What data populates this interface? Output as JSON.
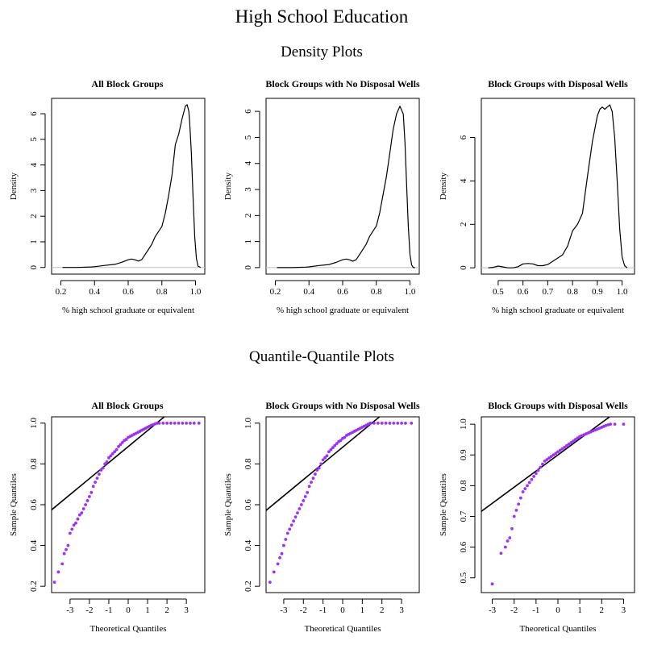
{
  "figure": {
    "title": "High School Education",
    "density_section_title": "Density Plots",
    "qq_section_title": "Quantile-Quantile Plots"
  },
  "colors": {
    "line": "#000000",
    "points": "#9B30FF",
    "baseline": "#bebebe"
  },
  "chart_data": [
    {
      "type": "line",
      "title": "All Block Groups",
      "xlabel": "% high school graduate or equivalent",
      "ylabel": "Density",
      "xlim": [
        0.145,
        1.055
      ],
      "ylim": [
        -0.26,
        6.6
      ],
      "xticks": [
        {
          "v": 0.2,
          "label": "0.2"
        },
        {
          "v": 0.4,
          "label": "0.4"
        },
        {
          "v": 0.6,
          "label": "0.6"
        },
        {
          "v": 0.8,
          "label": "0.8"
        },
        {
          "v": 1.0,
          "label": "1.0"
        }
      ],
      "yticks": [
        {
          "v": 0,
          "label": "0"
        },
        {
          "v": 1,
          "label": "1"
        },
        {
          "v": 2,
          "label": "2"
        },
        {
          "v": 3,
          "label": "3"
        },
        {
          "v": 4,
          "label": "4"
        },
        {
          "v": 5,
          "label": "5"
        },
        {
          "v": 6,
          "label": "6"
        }
      ],
      "baseline": 0,
      "x": [
        0.21,
        0.3,
        0.38,
        0.4,
        0.46,
        0.52,
        0.56,
        0.6,
        0.62,
        0.64,
        0.66,
        0.68,
        0.7,
        0.72,
        0.74,
        0.76,
        0.78,
        0.8,
        0.82,
        0.84,
        0.86,
        0.88,
        0.9,
        0.92,
        0.94,
        0.95,
        0.96,
        0.965,
        0.975,
        0.985,
        0.995,
        1.005,
        1.015,
        1.03
      ],
      "y": [
        0.0,
        0.0,
        0.02,
        0.03,
        0.08,
        0.12,
        0.2,
        0.3,
        0.33,
        0.3,
        0.25,
        0.3,
        0.5,
        0.7,
        0.9,
        1.2,
        1.4,
        1.6,
        2.1,
        2.8,
        3.6,
        4.8,
        5.2,
        5.8,
        6.3,
        6.35,
        6.1,
        5.7,
        4.5,
        2.8,
        1.2,
        0.35,
        0.05,
        0.0
      ]
    },
    {
      "type": "line",
      "title": "Block Groups with No Disposal Wells",
      "xlabel": "% high school graduate or equivalent",
      "ylabel": "Density",
      "xlim": [
        0.145,
        1.055
      ],
      "ylim": [
        -0.25,
        6.5
      ],
      "xticks": [
        {
          "v": 0.2,
          "label": "0.2"
        },
        {
          "v": 0.4,
          "label": "0.4"
        },
        {
          "v": 0.6,
          "label": "0.6"
        },
        {
          "v": 0.8,
          "label": "0.8"
        },
        {
          "v": 1.0,
          "label": "1.0"
        }
      ],
      "yticks": [
        {
          "v": 0,
          "label": "0"
        },
        {
          "v": 1,
          "label": "1"
        },
        {
          "v": 2,
          "label": "2"
        },
        {
          "v": 3,
          "label": "3"
        },
        {
          "v": 4,
          "label": "4"
        },
        {
          "v": 5,
          "label": "5"
        },
        {
          "v": 6,
          "label": "6"
        }
      ],
      "baseline": 0,
      "x": [
        0.21,
        0.3,
        0.38,
        0.4,
        0.46,
        0.52,
        0.56,
        0.6,
        0.62,
        0.64,
        0.66,
        0.68,
        0.7,
        0.72,
        0.74,
        0.76,
        0.78,
        0.8,
        0.82,
        0.84,
        0.86,
        0.88,
        0.9,
        0.92,
        0.94,
        0.96,
        0.97,
        0.98,
        0.99,
        1.0,
        1.01,
        1.02,
        1.03
      ],
      "y": [
        0.0,
        0.0,
        0.02,
        0.03,
        0.08,
        0.12,
        0.2,
        0.3,
        0.33,
        0.3,
        0.25,
        0.3,
        0.5,
        0.7,
        0.9,
        1.2,
        1.4,
        1.6,
        2.1,
        2.8,
        3.5,
        4.4,
        5.3,
        5.9,
        6.2,
        5.9,
        4.8,
        3.2,
        1.6,
        0.5,
        0.1,
        0.0,
        0.0
      ]
    },
    {
      "type": "line",
      "title": "Block Groups with Disposal Wells",
      "xlabel": "% high school graduate or equivalent",
      "ylabel": "Density",
      "xlim": [
        0.432,
        1.05
      ],
      "ylim": [
        -0.29,
        7.8
      ],
      "xticks": [
        {
          "v": 0.5,
          "label": "0.5"
        },
        {
          "v": 0.6,
          "label": "0.6"
        },
        {
          "v": 0.7,
          "label": "0.7"
        },
        {
          "v": 0.8,
          "label": "0.8"
        },
        {
          "v": 0.9,
          "label": "0.9"
        },
        {
          "v": 1.0,
          "label": "1.0"
        }
      ],
      "yticks": [
        {
          "v": 0,
          "label": "0"
        },
        {
          "v": 2,
          "label": "2"
        },
        {
          "v": 4,
          "label": "4"
        },
        {
          "v": 6,
          "label": "6"
        }
      ],
      "baseline": 0,
      "x": [
        0.46,
        0.48,
        0.5,
        0.52,
        0.54,
        0.56,
        0.58,
        0.6,
        0.62,
        0.64,
        0.66,
        0.68,
        0.7,
        0.72,
        0.74,
        0.76,
        0.78,
        0.8,
        0.82,
        0.84,
        0.86,
        0.88,
        0.9,
        0.91,
        0.92,
        0.93,
        0.94,
        0.95,
        0.96,
        0.97,
        0.98,
        0.99,
        1.0,
        1.01,
        1.02
      ],
      "y": [
        0.0,
        0.02,
        0.08,
        0.04,
        0.0,
        0.0,
        0.05,
        0.18,
        0.2,
        0.18,
        0.1,
        0.1,
        0.15,
        0.3,
        0.45,
        0.6,
        1.0,
        1.7,
        2.0,
        2.5,
        4.2,
        5.8,
        7.0,
        7.3,
        7.4,
        7.3,
        7.4,
        7.5,
        7.2,
        6.0,
        4.0,
        1.8,
        0.5,
        0.1,
        0.0
      ]
    },
    {
      "type": "scatter",
      "title": "All Block Groups",
      "xlabel": "Theoretical Quantiles",
      "ylabel": "Sample Quantiles",
      "xlim": [
        -3.95,
        3.95
      ],
      "ylim": [
        0.169,
        1.031
      ],
      "xticks": [
        {
          "v": -3,
          "label": "-3"
        },
        {
          "v": -2,
          "label": "-2"
        },
        {
          "v": -1,
          "label": "-1"
        },
        {
          "v": 0,
          "label": "0"
        },
        {
          "v": 1,
          "label": "1"
        },
        {
          "v": 2,
          "label": "2"
        },
        {
          "v": 3,
          "label": "3"
        }
      ],
      "yticks": [
        {
          "v": 0.2,
          "label": "0.2"
        },
        {
          "v": 0.4,
          "label": "0.4"
        },
        {
          "v": 0.6,
          "label": "0.6"
        },
        {
          "v": 0.8,
          "label": "0.8"
        },
        {
          "v": 1.0,
          "label": "1.0"
        }
      ],
      "reference_line": {
        "intercept": 0.885,
        "slope": 0.0785
      },
      "x": [
        -3.8,
        -3.6,
        -3.4,
        -3.3,
        -3.2,
        -3.1,
        -3.0,
        -2.9,
        -2.8,
        -2.7,
        -2.6,
        -2.5,
        -2.4,
        -2.3,
        -2.2,
        -2.1,
        -2.0,
        -1.9,
        -1.8,
        -1.7,
        -1.6,
        -1.5,
        -1.4,
        -1.3,
        -1.2,
        -1.1,
        -1.0,
        -0.9,
        -0.8,
        -0.7,
        -0.6,
        -0.5,
        -0.4,
        -0.3,
        -0.2,
        -0.1,
        0.0,
        0.1,
        0.2,
        0.3,
        0.4,
        0.5,
        0.6,
        0.7,
        0.8,
        0.9,
        1.0,
        1.1,
        1.2,
        1.3,
        1.4,
        1.5,
        1.6,
        1.8,
        2.0,
        2.2,
        2.4,
        2.6,
        2.8,
        3.0,
        3.2,
        3.4,
        3.65
      ],
      "y": [
        0.22,
        0.27,
        0.31,
        0.36,
        0.38,
        0.4,
        0.46,
        0.48,
        0.5,
        0.51,
        0.53,
        0.55,
        0.56,
        0.58,
        0.6,
        0.62,
        0.64,
        0.66,
        0.69,
        0.71,
        0.73,
        0.75,
        0.77,
        0.78,
        0.8,
        0.81,
        0.83,
        0.84,
        0.85,
        0.86,
        0.87,
        0.885,
        0.895,
        0.905,
        0.915,
        0.92,
        0.93,
        0.935,
        0.94,
        0.945,
        0.95,
        0.955,
        0.96,
        0.965,
        0.97,
        0.975,
        0.98,
        0.985,
        0.99,
        0.993,
        0.997,
        1.0,
        1.0,
        1.0,
        1.0,
        1.0,
        1.0,
        1.0,
        1.0,
        1.0,
        1.0,
        1.0,
        1.0
      ]
    },
    {
      "type": "scatter",
      "title": "Block Groups with No Disposal Wells",
      "xlabel": "Theoretical Quantiles",
      "ylabel": "Sample Quantiles",
      "xlim": [
        -3.9,
        3.9
      ],
      "ylim": [
        0.169,
        1.031
      ],
      "xticks": [
        {
          "v": -3,
          "label": "-3"
        },
        {
          "v": -2,
          "label": "-2"
        },
        {
          "v": -1,
          "label": "-1"
        },
        {
          "v": 0,
          "label": "0"
        },
        {
          "v": 1,
          "label": "1"
        },
        {
          "v": 2,
          "label": "2"
        },
        {
          "v": 3,
          "label": "3"
        }
      ],
      "yticks": [
        {
          "v": 0.2,
          "label": "0.2"
        },
        {
          "v": 0.4,
          "label": "0.4"
        },
        {
          "v": 0.6,
          "label": "0.6"
        },
        {
          "v": 0.8,
          "label": "0.8"
        },
        {
          "v": 1.0,
          "label": "1.0"
        }
      ],
      "reference_line": {
        "intercept": 0.882,
        "slope": 0.0795
      },
      "x": [
        -3.7,
        -3.5,
        -3.3,
        -3.2,
        -3.1,
        -3.0,
        -2.9,
        -2.8,
        -2.7,
        -2.6,
        -2.5,
        -2.4,
        -2.3,
        -2.2,
        -2.1,
        -2.0,
        -1.9,
        -1.8,
        -1.7,
        -1.6,
        -1.5,
        -1.4,
        -1.3,
        -1.2,
        -1.1,
        -1.0,
        -0.9,
        -0.8,
        -0.7,
        -0.6,
        -0.5,
        -0.4,
        -0.3,
        -0.2,
        -0.1,
        0.0,
        0.1,
        0.2,
        0.3,
        0.4,
        0.5,
        0.6,
        0.7,
        0.8,
        0.9,
        1.0,
        1.1,
        1.2,
        1.3,
        1.4,
        1.6,
        1.8,
        2.0,
        2.2,
        2.4,
        2.6,
        2.8,
        3.0,
        3.2,
        3.5
      ],
      "y": [
        0.22,
        0.27,
        0.31,
        0.34,
        0.36,
        0.4,
        0.43,
        0.46,
        0.48,
        0.5,
        0.52,
        0.54,
        0.56,
        0.58,
        0.6,
        0.62,
        0.64,
        0.66,
        0.69,
        0.71,
        0.73,
        0.75,
        0.77,
        0.78,
        0.8,
        0.82,
        0.83,
        0.84,
        0.86,
        0.87,
        0.88,
        0.89,
        0.9,
        0.91,
        0.915,
        0.925,
        0.93,
        0.94,
        0.945,
        0.95,
        0.955,
        0.96,
        0.965,
        0.97,
        0.975,
        0.98,
        0.985,
        0.99,
        0.995,
        1.0,
        1.0,
        1.0,
        1.0,
        1.0,
        1.0,
        1.0,
        1.0,
        1.0,
        1.0,
        1.0
      ]
    },
    {
      "type": "scatter",
      "title": "Block Groups with Disposal Wells",
      "xlabel": "Theoretical Quantiles",
      "ylabel": "Sample Quantiles",
      "xlim": [
        -3.5,
        3.5
      ],
      "ylim": [
        0.452,
        1.024
      ],
      "xticks": [
        {
          "v": -3,
          "label": "-3"
        },
        {
          "v": -2,
          "label": "-2"
        },
        {
          "v": -1,
          "label": "-1"
        },
        {
          "v": 0,
          "label": "0"
        },
        {
          "v": 1,
          "label": "1"
        },
        {
          "v": 2,
          "label": "2"
        },
        {
          "v": 3,
          "label": "3"
        }
      ],
      "yticks": [
        {
          "v": 0.5,
          "label": "0.5"
        },
        {
          "v": 0.6,
          "label": "0.6"
        },
        {
          "v": 0.7,
          "label": "0.7"
        },
        {
          "v": 0.8,
          "label": "0.8"
        },
        {
          "v": 0.9,
          "label": "0.9"
        },
        {
          "v": 1.0,
          "label": "1.0"
        }
      ],
      "reference_line": {
        "intercept": 0.9,
        "slope": 0.0525
      },
      "x": [
        -3.0,
        -2.6,
        -2.4,
        -2.3,
        -2.2,
        -2.1,
        -2.0,
        -1.9,
        -1.8,
        -1.7,
        -1.6,
        -1.5,
        -1.4,
        -1.3,
        -1.2,
        -1.1,
        -1.0,
        -0.9,
        -0.8,
        -0.7,
        -0.6,
        -0.5,
        -0.4,
        -0.3,
        -0.2,
        -0.1,
        0.0,
        0.1,
        0.2,
        0.3,
        0.4,
        0.5,
        0.6,
        0.7,
        0.8,
        0.9,
        1.0,
        1.1,
        1.2,
        1.3,
        1.4,
        1.5,
        1.6,
        1.7,
        1.8,
        1.9,
        2.0,
        2.1,
        2.2,
        2.3,
        2.4,
        2.6,
        3.0
      ],
      "y": [
        0.48,
        0.58,
        0.6,
        0.62,
        0.63,
        0.66,
        0.7,
        0.72,
        0.74,
        0.76,
        0.78,
        0.79,
        0.8,
        0.81,
        0.82,
        0.83,
        0.84,
        0.85,
        0.86,
        0.87,
        0.88,
        0.885,
        0.89,
        0.895,
        0.9,
        0.905,
        0.91,
        0.915,
        0.92,
        0.925,
        0.93,
        0.935,
        0.94,
        0.945,
        0.95,
        0.955,
        0.96,
        0.963,
        0.966,
        0.969,
        0.972,
        0.975,
        0.978,
        0.981,
        0.984,
        0.987,
        0.99,
        0.993,
        0.996,
        0.998,
        1.0,
        1.0,
        1.0
      ]
    }
  ]
}
